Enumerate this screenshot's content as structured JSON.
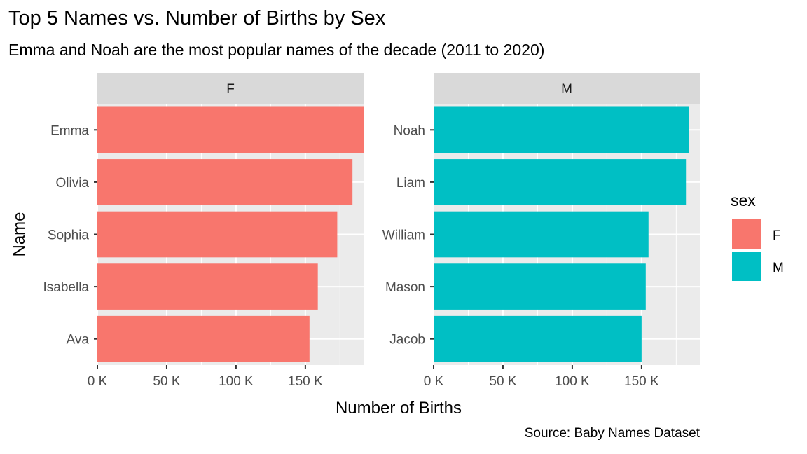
{
  "chart_data": {
    "type": "bar",
    "orientation": "horizontal",
    "title": "Top 5 Names vs. Number of Births by Sex",
    "subtitle": "Emma and Noah are the most popular names of the decade (2011 to 2020)",
    "caption": "Source: Baby Names Dataset",
    "xlabel": "Number of Births",
    "ylabel": "Name",
    "xlim": [
      0,
      192000
    ],
    "x_ticks": [
      0,
      50000,
      100000,
      150000
    ],
    "x_tick_labels": [
      "0 K",
      "50 K",
      "100 K",
      "150 K"
    ],
    "legend": {
      "title": "sex",
      "placement": "right",
      "entries": [
        {
          "label": "F",
          "color": "#F8766D"
        },
        {
          "label": "M",
          "color": "#00BFC4"
        }
      ]
    },
    "facets": [
      {
        "label": "F",
        "color": "#F8766D",
        "categories": [
          "Emma",
          "Olivia",
          "Sophia",
          "Isabella",
          "Ava"
        ],
        "values": [
          192000,
          184000,
          173000,
          159000,
          153000
        ]
      },
      {
        "label": "M",
        "color": "#00BFC4",
        "categories": [
          "Noah",
          "Liam",
          "William",
          "Mason",
          "Jacob"
        ],
        "values": [
          184000,
          182000,
          155000,
          153000,
          150000
        ]
      }
    ],
    "grid": true
  }
}
